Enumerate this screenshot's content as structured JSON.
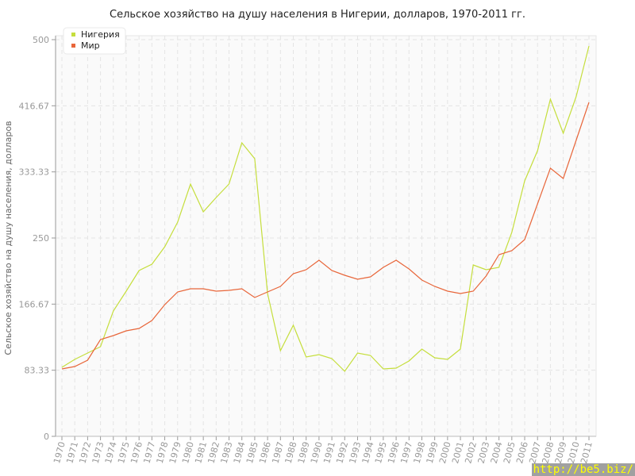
{
  "chart_data": {
    "type": "line",
    "title": "Сельское хозяйство на душу населения в Нигерии, долларов, 1970-2011 гг.",
    "xlabel": "",
    "ylabel": "Сельское хозяйство на душу населения, долларов",
    "ylim": [
      0,
      500
    ],
    "yticks": [
      "0",
      "83.33",
      "166.67",
      "250",
      "333.33",
      "416.67",
      "500"
    ],
    "grid": true,
    "legend_position": "top-left",
    "x": [
      "1970",
      "1971",
      "1972",
      "1973",
      "1974",
      "1975",
      "1976",
      "1977",
      "1978",
      "1979",
      "1980",
      "1981",
      "1982",
      "1983",
      "1984",
      "1985",
      "1986",
      "1987",
      "1988",
      "1989",
      "1990",
      "1991",
      "1992",
      "1993",
      "1994",
      "1995",
      "1996",
      "1997",
      "1998",
      "1999",
      "2000",
      "2001",
      "2002",
      "2003",
      "2004",
      "2005",
      "2006",
      "2007",
      "2008",
      "2009",
      "2010",
      "2011"
    ],
    "series": [
      {
        "name": "Нигерия",
        "color": "#c5de3c",
        "values": [
          87,
          97,
          105,
          113,
          158,
          183,
          209,
          217,
          239,
          270,
          318,
          283,
          301,
          318,
          370,
          350,
          180,
          108,
          140,
          100,
          103,
          98,
          82,
          105,
          102,
          85,
          86,
          95,
          110,
          99,
          97,
          110,
          216,
          210,
          213,
          257,
          322,
          360,
          425,
          382,
          428,
          492
        ]
      },
      {
        "name": "Мир",
        "color": "#e8663a",
        "values": [
          85,
          88,
          96,
          122,
          127,
          133,
          136,
          146,
          166,
          182,
          186,
          186,
          183,
          184,
          186,
          175,
          182,
          189,
          205,
          210,
          222,
          209,
          203,
          198,
          201,
          213,
          222,
          211,
          197,
          189,
          183,
          180,
          183,
          202,
          229,
          234,
          248,
          293,
          338,
          325,
          373,
          421
        ]
      }
    ]
  },
  "watermark": "http://be5.biz/"
}
